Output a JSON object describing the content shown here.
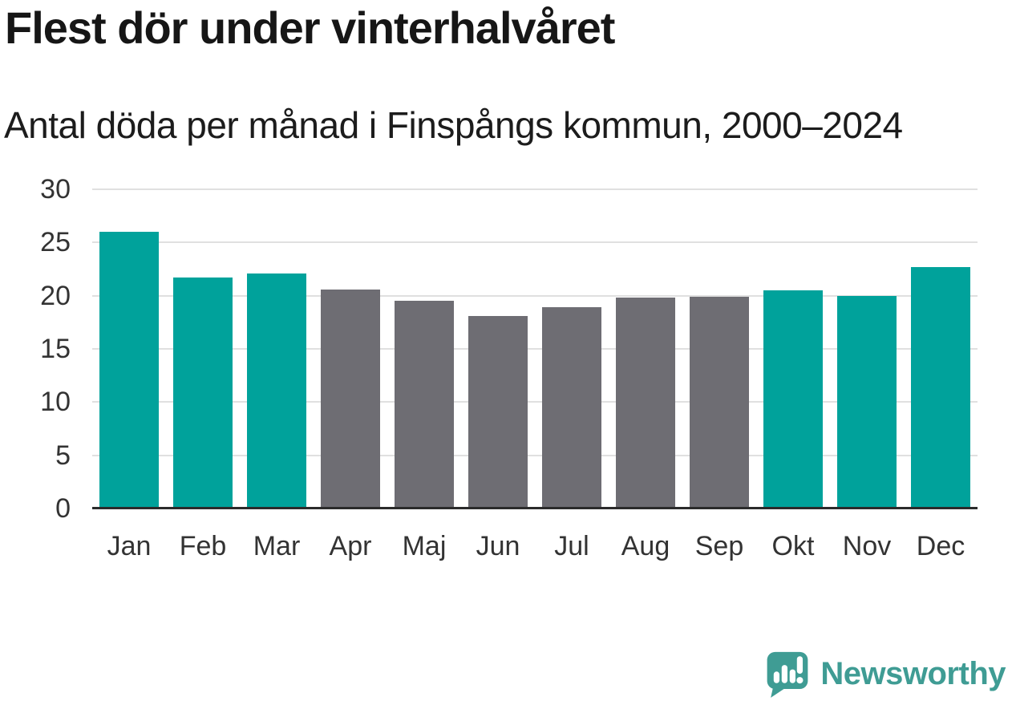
{
  "title": "Flest dör under vinterhalvåret",
  "subtitle": "Antal döda per månad i Finspångs kommun, 2000–2024",
  "chart_data": {
    "type": "bar",
    "categories": [
      "Jan",
      "Feb",
      "Mar",
      "Apr",
      "Maj",
      "Jun",
      "Jul",
      "Aug",
      "Sep",
      "Okt",
      "Nov",
      "Dec"
    ],
    "values": [
      26.0,
      21.7,
      22.1,
      20.6,
      19.5,
      18.1,
      18.9,
      19.8,
      19.9,
      20.5,
      20.0,
      22.7
    ],
    "bar_palette": [
      "winter",
      "winter",
      "winter",
      "summer",
      "summer",
      "summer",
      "summer",
      "summer",
      "summer",
      "winter",
      "winter",
      "winter"
    ],
    "colors": {
      "winter": "#00A29B",
      "summer": "#6E6D73"
    },
    "title": "Flest dör under vinterhalvåret",
    "subtitle": "Antal döda per månad i Finspångs kommun, 2000–2024",
    "xlabel": "",
    "ylabel": "",
    "ylim": [
      0,
      30
    ],
    "yticks": [
      0,
      5,
      10,
      15,
      20,
      25,
      30
    ],
    "grid": "horizontal-only",
    "legend": "none"
  },
  "axis": {
    "gridline_color": "#E0E0E0",
    "baseline_color": "#2B2B2B",
    "tick_label_color": "#333333"
  },
  "branding": {
    "name": "Newsworthy",
    "color": "#3F9C94",
    "icon": "newsworthy-speech-bubble-chart-icon"
  }
}
